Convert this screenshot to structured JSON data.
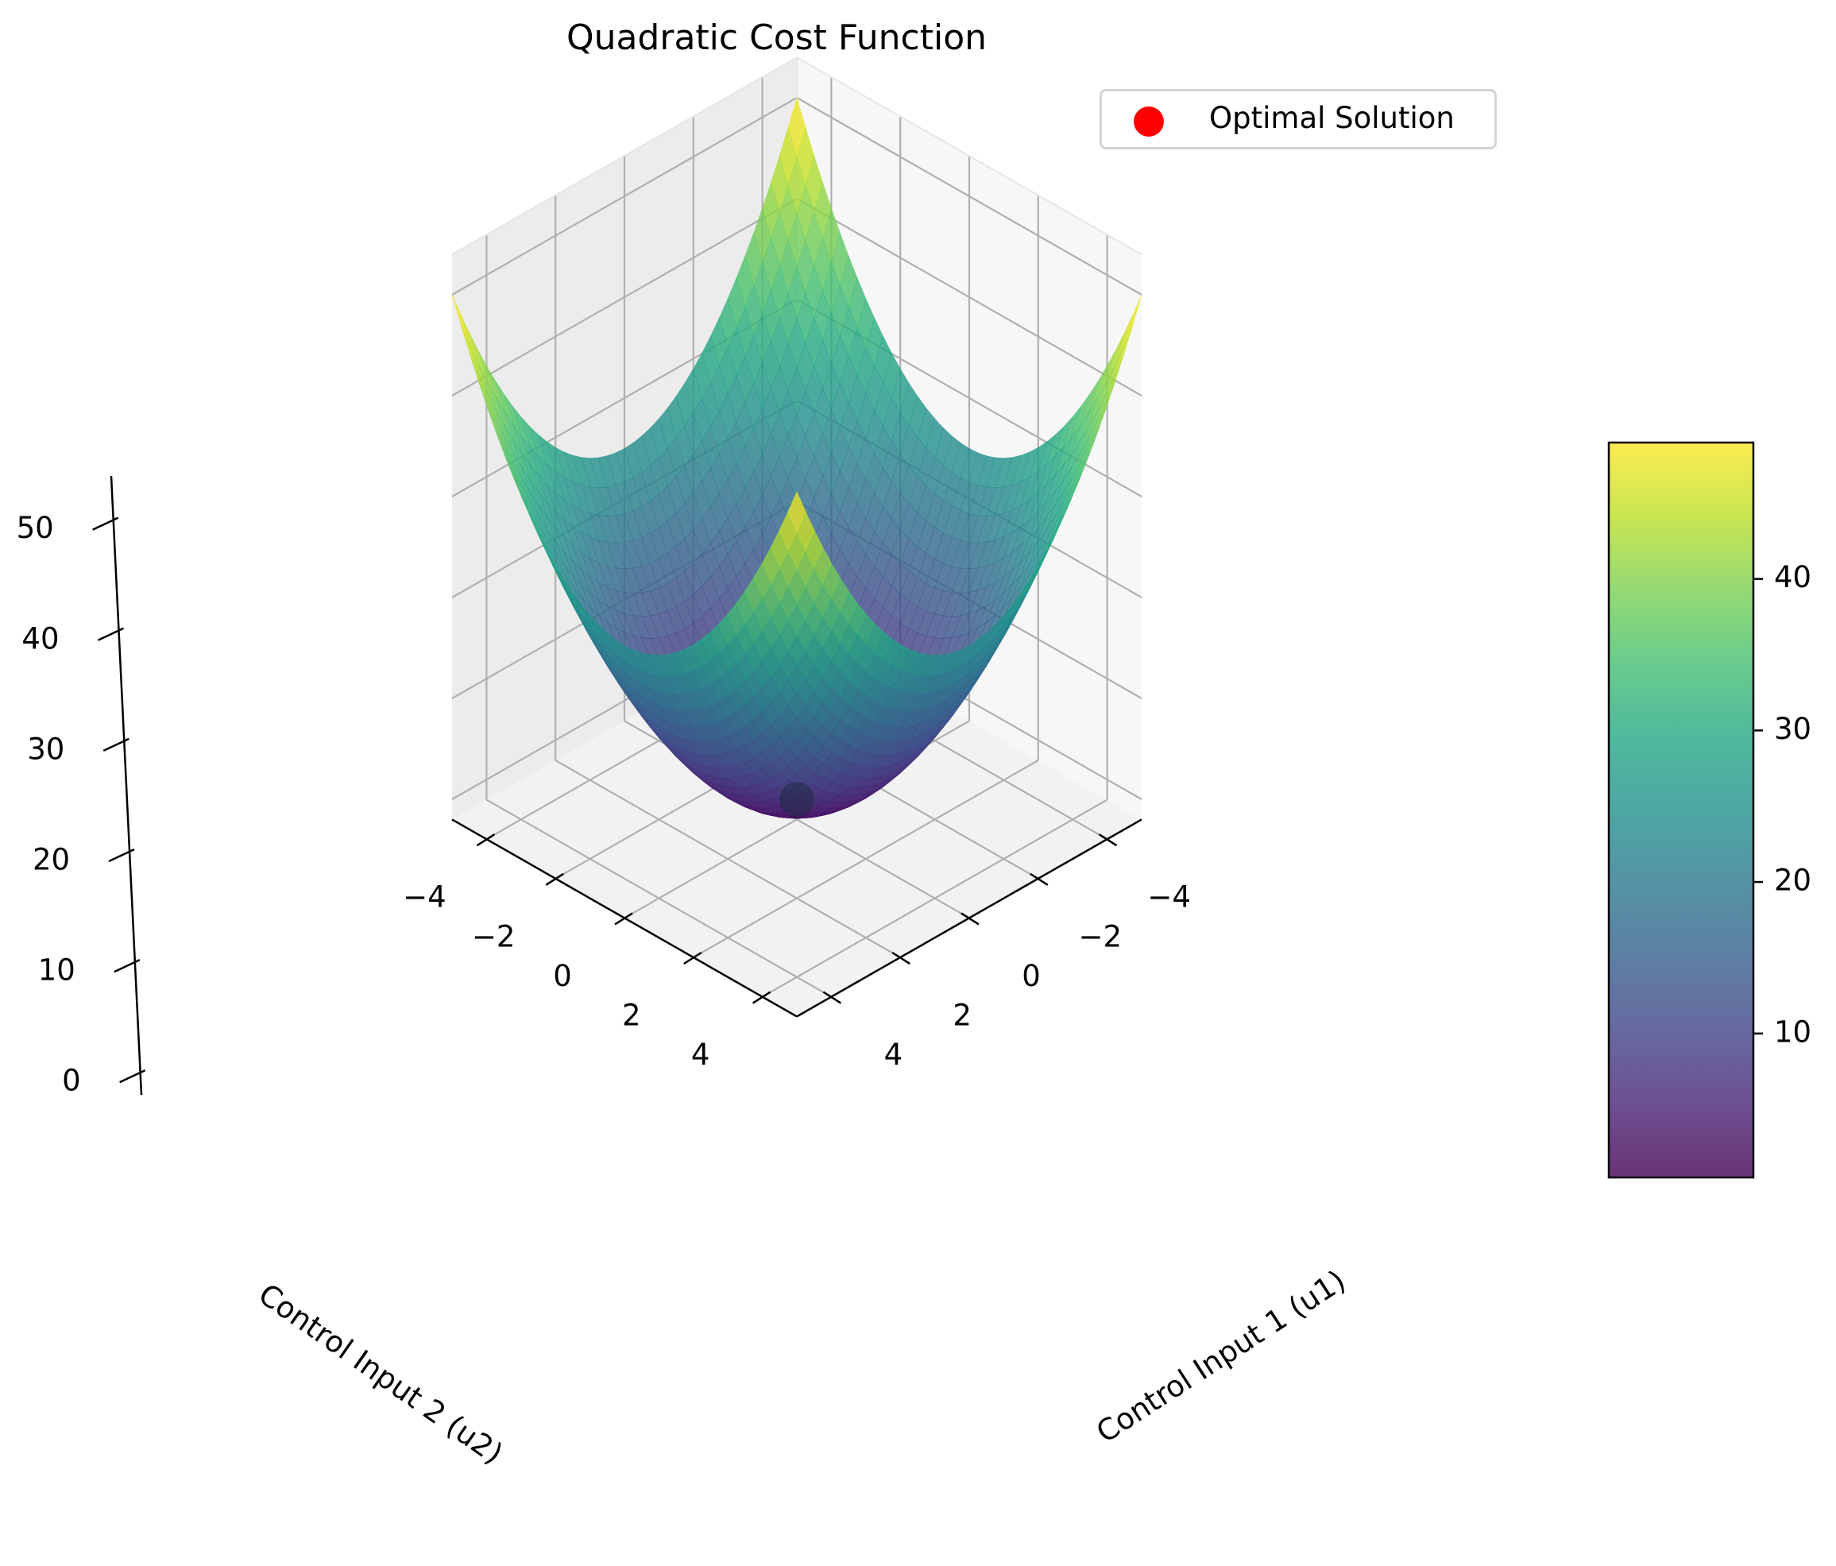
{
  "chart_data": {
    "type": "surface",
    "title": "Quadratic Cost Function",
    "xlabel": "Control Input 1 (u1)",
    "ylabel": "Control Input 2 (u2)",
    "zlabel": "",
    "xlim": [
      -5,
      5
    ],
    "ylim": [
      -5,
      5
    ],
    "zlim": [
      -2,
      54
    ],
    "x_ticks": [
      -4,
      -2,
      0,
      2,
      4
    ],
    "y_ticks": [
      -4,
      -2,
      0,
      2,
      4
    ],
    "z_ticks": [
      0,
      10,
      20,
      30,
      40,
      50
    ],
    "x_tick_labels": [
      "−4",
      "−2",
      "0",
      "2",
      "4"
    ],
    "y_tick_labels": [
      "−4",
      "−2",
      "0",
      "2",
      "4"
    ],
    "z_tick_labels": [
      "0",
      "10",
      "20",
      "30",
      "40",
      "50"
    ],
    "surface": {
      "function": "z = u1^2 + u2^2",
      "u1_range": [
        -5,
        5
      ],
      "u2_range": [
        -5,
        5
      ],
      "colormap": "viridis",
      "alpha": 0.8
    },
    "points": [
      {
        "name": "Optimal Solution",
        "x": 0,
        "y": 0,
        "z": 0,
        "color": "#ff0000"
      }
    ],
    "colorbar": {
      "ticks": [
        10,
        20,
        30,
        40
      ],
      "tick_labels": [
        "10",
        "20",
        "30",
        "40"
      ],
      "range": [
        0.5,
        49
      ]
    },
    "legend": {
      "entries": [
        "Optimal Solution"
      ],
      "placement": "top-right"
    },
    "grid": true
  }
}
